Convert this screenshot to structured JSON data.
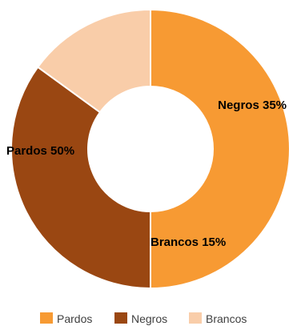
{
  "chart_data": {
    "type": "pie",
    "variant": "donut",
    "categories": [
      "Pardos",
      "Negros",
      "Brancos"
    ],
    "values": [
      50,
      35,
      15
    ],
    "unit": "%",
    "colors": [
      "#f79a33",
      "#9a4712",
      "#f9cda9"
    ],
    "data_labels": [
      "Pardos 50%",
      "Negros 35%",
      "Brancos 15%"
    ],
    "legend": {
      "position": "bottom",
      "entries": [
        "Pardos",
        "Negros",
        "Brancos"
      ]
    }
  }
}
